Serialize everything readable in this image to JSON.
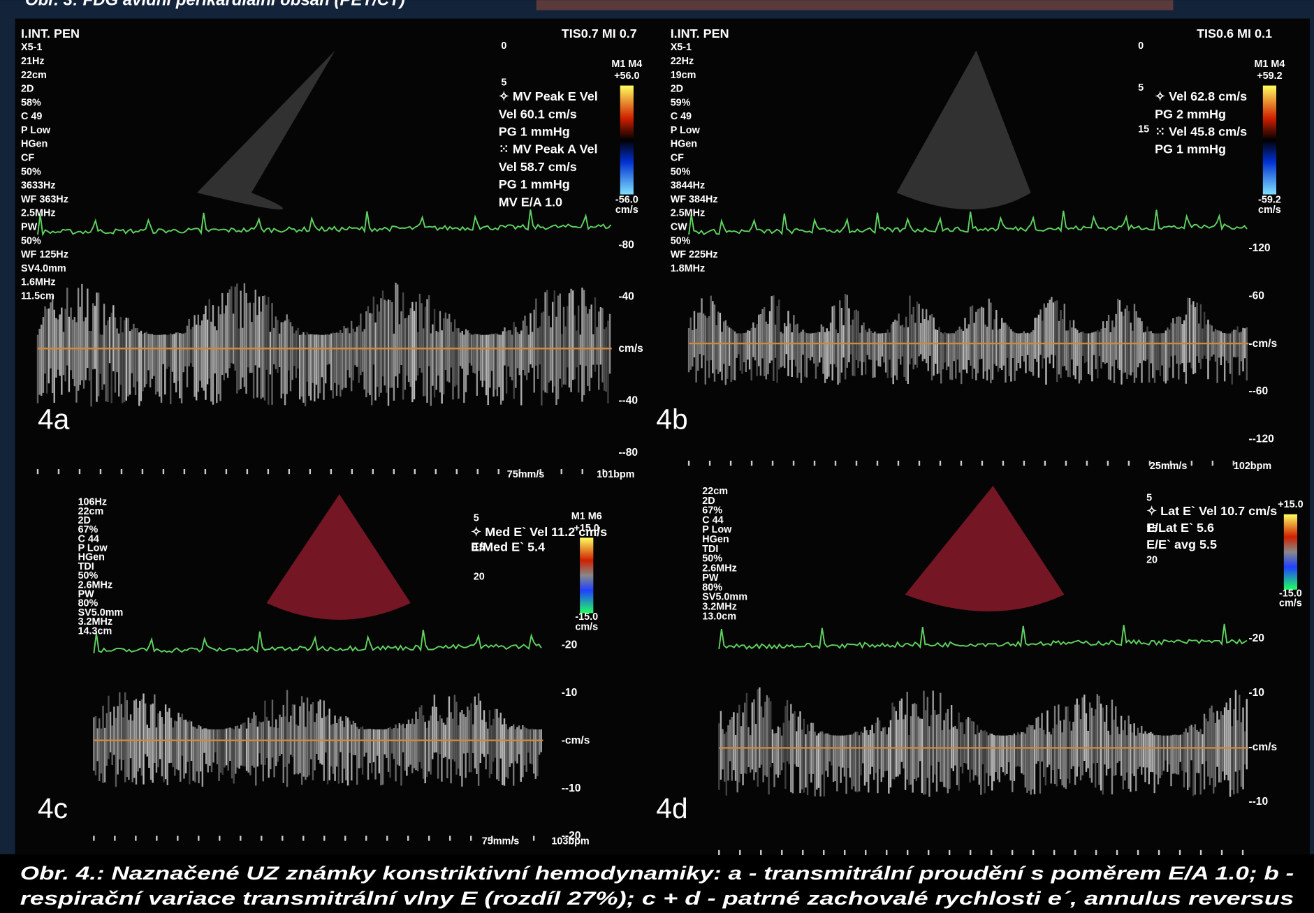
{
  "top_caption": "Obr. 3: FDG avidní perikardiální obsah (PET/CT)",
  "panels": [
    {
      "label": "4a",
      "header_left": "I.INT. PEN",
      "header_right": "TIS0.7  MI 0.7",
      "settings": [
        "X5-1",
        "21Hz",
        "22cm",
        "2D",
        "58%",
        "C 49",
        "P Low",
        "HGen",
        "CF",
        "50%",
        "3633Hz",
        "WF 363Hz",
        "2.5MHz",
        "PW",
        "50%",
        "WF 125Hz",
        "SV4.0mm",
        "1.6MHz",
        "11.5cm"
      ],
      "measurements": [
        "✧ MV Peak E Vel",
        "Vel  60.1 cm/s",
        "PG     1 mmHg",
        "⁙ MV Peak A Vel",
        "Vel  58.7 cm/s",
        "PG     1 mmHg",
        "MV E/A        1.0"
      ],
      "color_scale": [
        "M1 M4",
        "+56.0",
        "-56.0",
        "cm/s"
      ],
      "depth_ticks": [
        "0",
        "5"
      ],
      "velocity_ticks": [
        "-80",
        "-40",
        "cm/s",
        "--40",
        "--80"
      ],
      "footer": [
        "75mm/s",
        "101bpm"
      ]
    },
    {
      "label": "4b",
      "header_left": "I.INT. PEN",
      "header_right": "TIS0.6  MI 0.1",
      "settings": [
        "X5-1",
        "22Hz",
        "19cm",
        "2D",
        "59%",
        "C 49",
        "P Low",
        "HGen",
        "CF",
        "50%",
        "3844Hz",
        "WF 384Hz",
        "2.5MHz",
        "CW",
        "50%",
        "WF 225Hz",
        "1.8MHz"
      ],
      "measurements": [
        "✧ Vel  62.8 cm/s",
        "PG     2 mmHg",
        "⁙ Vel  45.8 cm/s",
        "PG     1 mmHg"
      ],
      "color_scale": [
        "M1 M4",
        "+59.2",
        "-59.2",
        "cm/s"
      ],
      "depth_ticks": [
        "0",
        "5",
        "15"
      ],
      "velocity_ticks": [
        "-120",
        "-60",
        "-cm/s",
        "--60",
        "--120"
      ],
      "footer": [
        "25mm/s",
        "102bpm"
      ]
    },
    {
      "label": "4c",
      "header_left": "",
      "header_right": "",
      "settings": [
        "106Hz",
        "22cm",
        "2D",
        "67%",
        "C 44",
        "P Low",
        "HGen",
        "TDI",
        "50%",
        "2.6MHz",
        "PW",
        "80%",
        "SV5.0mm",
        "3.2MHz",
        "14.3cm"
      ],
      "measurements": [
        "✧ Med E` Vel  11.2 cm/s",
        "E/Med E`              5.4"
      ],
      "color_scale": [
        "M1 M6",
        "+15.0",
        "-15.0",
        "cm/s"
      ],
      "depth_ticks": [
        "5",
        "15",
        "20"
      ],
      "velocity_ticks": [
        "-20",
        "-10",
        "-cm/s",
        "--10",
        "--20"
      ],
      "footer": [
        "75mm/s",
        "103bpm"
      ]
    },
    {
      "label": "4d",
      "header_left": "",
      "header_right": "",
      "settings": [
        "22cm",
        "2D",
        "67%",
        "C 44",
        "P Low",
        "HGen",
        "TDI",
        "50%",
        "2.6MHz",
        "PW",
        "80%",
        "SV5.0mm",
        "3.2MHz",
        "13.0cm"
      ],
      "measurements": [
        "✧ Lat E` Vel  10.7 cm/s",
        "E/Lat E`                5.6",
        "E/E` avg               5.5"
      ],
      "color_scale": [
        "",
        "+15.0",
        "-15.0",
        "cm/s"
      ],
      "depth_ticks": [
        "5",
        "15",
        "20"
      ],
      "velocity_ticks": [
        "-20",
        "-10",
        "-cm/s",
        "--10"
      ],
      "footer": [
        "",
        ""
      ]
    }
  ],
  "caption": [
    "Obr. 4.: Naznačené UZ známky konstriktivní hemodynamiky: a - transmitrální proudění s  poměrem E/A 1.0; b -",
    "respirační variace transmitrální vlny E  (rozdíl 27%); c + d - patrné zachovalé rychlosti e´, annulus reversus"
  ]
}
